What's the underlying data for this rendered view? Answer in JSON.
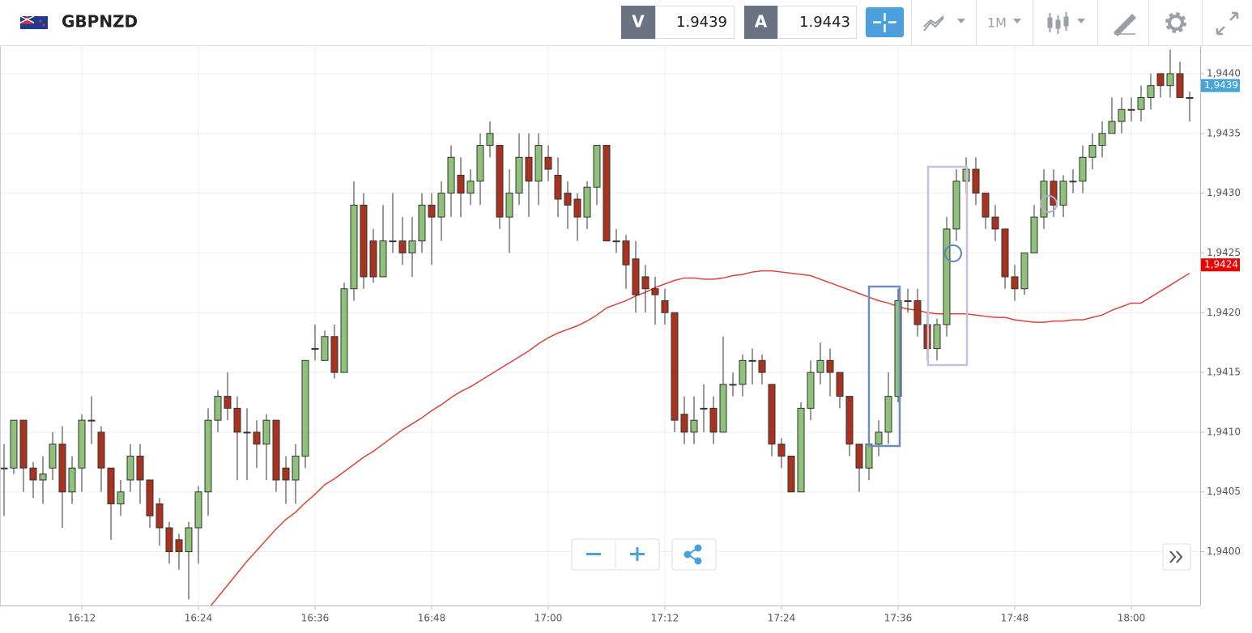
{
  "toolbar": {
    "symbol": "GBPNZD",
    "sell_label": "V",
    "sell_price": 1.9439,
    "buy_label": "A",
    "buy_price": 1.9443,
    "timeframe": "1M"
  },
  "chart_data": {
    "type": "candlestick",
    "x": [
      "16:04",
      "16:05",
      "16:06",
      "16:07",
      "16:08",
      "16:09",
      "16:10",
      "16:11",
      "16:12",
      "16:13",
      "16:14",
      "16:15",
      "16:16",
      "16:17",
      "16:18",
      "16:19",
      "16:20",
      "16:21",
      "16:22",
      "16:23",
      "16:24",
      "16:25",
      "16:26",
      "16:27",
      "16:28",
      "16:29",
      "16:30",
      "16:31",
      "16:32",
      "16:33",
      "16:34",
      "16:35",
      "16:36",
      "16:37",
      "16:38",
      "16:39",
      "16:40",
      "16:41",
      "16:42",
      "16:43",
      "16:44",
      "16:45",
      "16:46",
      "16:47",
      "16:48",
      "16:49",
      "16:50",
      "16:51",
      "16:52",
      "16:53",
      "16:54",
      "16:55",
      "16:56",
      "16:57",
      "16:58",
      "16:59",
      "17:00",
      "17:01",
      "17:02",
      "17:03",
      "17:04",
      "17:05",
      "17:06",
      "17:07",
      "17:08",
      "17:09",
      "17:10",
      "17:11",
      "17:12",
      "17:13",
      "17:14",
      "17:15",
      "17:16",
      "17:17",
      "17:18",
      "17:19",
      "17:20",
      "17:21",
      "17:22",
      "17:23",
      "17:24",
      "17:25",
      "17:26",
      "17:27",
      "17:28",
      "17:29",
      "17:30",
      "17:31",
      "17:32",
      "17:33",
      "17:34",
      "17:35",
      "17:36",
      "17:37",
      "17:38",
      "17:39",
      "17:40",
      "17:41",
      "17:42",
      "17:43",
      "17:44",
      "17:45",
      "17:46",
      "17:47",
      "17:48",
      "17:49",
      "17:50",
      "17:51",
      "17:52",
      "17:53",
      "17:54",
      "17:55",
      "17:56",
      "17:57",
      "17:58",
      "17:59",
      "18:00",
      "18:01",
      "18:02",
      "18:03",
      "18:04",
      "18:05",
      "18:06"
    ],
    "open": [
      1.9407,
      1.9407,
      1.9411,
      1.9407,
      1.9406,
      1.9407,
      1.9409,
      1.9405,
      1.9407,
      1.9411,
      1.941,
      1.9407,
      1.9404,
      1.9406,
      1.9408,
      1.9406,
      1.9404,
      1.9402,
      1.9401,
      1.94,
      1.9402,
      1.9405,
      1.9411,
      1.9413,
      1.9412,
      1.941,
      1.941,
      1.9409,
      1.9411,
      1.9407,
      1.9406,
      1.9408,
      1.9417,
      1.9416,
      1.9418,
      1.9415,
      1.9422,
      1.9429,
      1.9426,
      1.9423,
      1.9426,
      1.9426,
      1.9425,
      1.9426,
      1.9429,
      1.9428,
      1.943,
      1.94315,
      1.943,
      1.9431,
      1.9434,
      1.9434,
      1.9428,
      1.943,
      1.9433,
      1.9431,
      1.9433,
      1.94315,
      1.943,
      1.94295,
      1.9428,
      1.94305,
      1.9434,
      1.9426,
      1.9426,
      1.94245,
      1.9423,
      1.9422,
      1.9421,
      1.942,
      1.94115,
      1.941,
      1.9412,
      1.9412,
      1.941,
      1.9414,
      1.9414,
      1.9416,
      1.9416,
      1.9414,
      1.9409,
      1.9408,
      1.9405,
      1.9412,
      1.9415,
      1.9416,
      1.9415,
      1.9413,
      1.9409,
      1.9407,
      1.9409,
      1.941,
      1.9413,
      1.9421,
      1.9421,
      1.9419,
      1.9417,
      1.9419,
      1.9427,
      1.9431,
      1.9432,
      1.943,
      1.9428,
      1.9427,
      1.9423,
      1.9422,
      1.9425,
      1.9428,
      1.9431,
      1.9429,
      1.9431,
      1.9431,
      1.9433,
      1.9434,
      1.9435,
      1.9436,
      1.9437,
      1.9437,
      1.9438,
      1.944,
      1.9439,
      1.944,
      1.9438
    ],
    "high": [
      1.9409,
      1.9411,
      1.9411,
      1.94075,
      1.9408,
      1.941,
      1.94105,
      1.9408,
      1.94115,
      1.9413,
      1.94105,
      1.9407,
      1.9406,
      1.9409,
      1.9409,
      1.9406,
      1.94045,
      1.94025,
      1.94015,
      1.94025,
      1.94055,
      1.9412,
      1.94135,
      1.9415,
      1.9413,
      1.9412,
      1.9411,
      1.94115,
      1.9411,
      1.9408,
      1.9409,
      1.9416,
      1.9419,
      1.94185,
      1.9419,
      1.94225,
      1.9431,
      1.943,
      1.9427,
      1.9429,
      1.943,
      1.9428,
      1.9428,
      1.943,
      1.943,
      1.9431,
      1.9434,
      1.9433,
      1.9432,
      1.9435,
      1.9436,
      1.9434,
      1.9432,
      1.9435,
      1.9435,
      1.9435,
      1.9434,
      1.9433,
      1.9431,
      1.943,
      1.9431,
      1.9434,
      1.9434,
      1.9427,
      1.94265,
      1.9426,
      1.9424,
      1.9423,
      1.9422,
      1.942,
      1.9413,
      1.9413,
      1.9414,
      1.9413,
      1.9418,
      1.9415,
      1.94165,
      1.9417,
      1.94165,
      1.9414,
      1.94095,
      1.9408,
      1.94125,
      1.9416,
      1.94175,
      1.9417,
      1.9415,
      1.9413,
      1.9409,
      1.94095,
      1.9411,
      1.9415,
      1.9422,
      1.9422,
      1.9422,
      1.942,
      1.94195,
      1.9428,
      1.9432,
      1.9433,
      1.9433,
      1.943,
      1.9429,
      1.9427,
      1.9424,
      1.9425,
      1.9429,
      1.9432,
      1.9432,
      1.94315,
      1.9432,
      1.9434,
      1.9435,
      1.9436,
      1.9438,
      1.9438,
      1.9438,
      1.9439,
      1.944,
      1.944,
      1.9442,
      1.9441,
      1.94385
    ],
    "low": [
      1.9403,
      1.94065,
      1.9405,
      1.94045,
      1.9404,
      1.9406,
      1.9402,
      1.9404,
      1.9405,
      1.9409,
      1.9405,
      1.9401,
      1.9403,
      1.9405,
      1.9404,
      1.9402,
      1.94005,
      1.9399,
      1.93985,
      1.9396,
      1.9399,
      1.9403,
      1.941,
      1.9411,
      1.9406,
      1.9406,
      1.9407,
      1.9406,
      1.9405,
      1.9404,
      1.9404,
      1.9407,
      1.9416,
      1.9416,
      1.94145,
      1.9415,
      1.9421,
      1.9422,
      1.94225,
      1.9423,
      1.9425,
      1.9424,
      1.9423,
      1.9425,
      1.9424,
      1.9426,
      1.9428,
      1.9428,
      1.9429,
      1.9429,
      1.9433,
      1.9427,
      1.9425,
      1.9429,
      1.9428,
      1.9429,
      1.9431,
      1.9428,
      1.9427,
      1.9426,
      1.9427,
      1.9429,
      1.9426,
      1.9425,
      1.9422,
      1.942,
      1.942,
      1.9419,
      1.9419,
      1.941,
      1.9409,
      1.9409,
      1.941,
      1.9409,
      1.941,
      1.9413,
      1.9413,
      1.9414,
      1.9414,
      1.9408,
      1.9407,
      1.9405,
      1.9405,
      1.9411,
      1.9414,
      1.9413,
      1.9412,
      1.9408,
      1.9405,
      1.9406,
      1.9408,
      1.9409,
      1.94125,
      1.942,
      1.9418,
      1.9416,
      1.9416,
      1.9418,
      1.9426,
      1.943,
      1.9429,
      1.9427,
      1.9426,
      1.9422,
      1.9421,
      1.94215,
      1.9425,
      1.9427,
      1.9428,
      1.9428,
      1.943,
      1.943,
      1.9432,
      1.9433,
      1.9435,
      1.9435,
      1.9436,
      1.9436,
      1.9437,
      1.9438,
      1.9438,
      1.9438,
      1.9436
    ],
    "close": [
      1.9407,
      1.9411,
      1.9407,
      1.9406,
      1.94065,
      1.9409,
      1.9405,
      1.9407,
      1.9411,
      1.9411,
      1.9407,
      1.9404,
      1.9405,
      1.9408,
      1.9406,
      1.9403,
      1.9402,
      1.94,
      1.94,
      1.9402,
      1.9405,
      1.9411,
      1.9413,
      1.9412,
      1.941,
      1.941,
      1.9409,
      1.9411,
      1.9406,
      1.9406,
      1.9408,
      1.9416,
      1.9417,
      1.9418,
      1.9415,
      1.9422,
      1.9429,
      1.9423,
      1.9423,
      1.9426,
      1.9426,
      1.9425,
      1.9426,
      1.9429,
      1.9428,
      1.943,
      1.9433,
      1.943,
      1.9431,
      1.9434,
      1.9435,
      1.9428,
      1.943,
      1.9433,
      1.9431,
      1.9434,
      1.9432,
      1.94295,
      1.9429,
      1.9428,
      1.94305,
      1.9434,
      1.9426,
      1.9426,
      1.9424,
      1.94215,
      1.9422,
      1.94215,
      1.942,
      1.9411,
      1.941,
      1.9411,
      1.9412,
      1.941,
      1.9414,
      1.9414,
      1.9416,
      1.9416,
      1.9415,
      1.9409,
      1.9408,
      1.9405,
      1.9412,
      1.9415,
      1.9416,
      1.9415,
      1.9413,
      1.9409,
      1.9407,
      1.9409,
      1.941,
      1.9413,
      1.9421,
      1.9421,
      1.9419,
      1.9417,
      1.9419,
      1.9427,
      1.9431,
      1.9432,
      1.943,
      1.9428,
      1.9427,
      1.9423,
      1.9422,
      1.9425,
      1.9428,
      1.9431,
      1.9429,
      1.9431,
      1.9431,
      1.9433,
      1.9434,
      1.9435,
      1.9436,
      1.9437,
      1.9437,
      1.9438,
      1.9439,
      1.9439,
      1.944,
      1.9438,
      1.9438
    ],
    "up_color": "#8fc17b",
    "down_color": "#a8321d",
    "wick_color": "#333333",
    "moving_average": {
      "color": "#d9443a",
      "values": [
        null,
        null,
        null,
        null,
        null,
        null,
        null,
        null,
        null,
        null,
        null,
        null,
        null,
        null,
        null,
        null,
        null,
        null,
        null,
        null,
        null,
        1.93952,
        1.93962,
        1.93972,
        1.93982,
        1.93992,
        1.94001,
        1.9401,
        1.94019,
        1.94027,
        1.94033,
        1.94041,
        1.94048,
        1.94056,
        1.94061,
        1.94067,
        1.94073,
        1.94079,
        1.94084,
        1.9409,
        1.94096,
        1.94102,
        1.94107,
        1.94112,
        1.94118,
        1.94123,
        1.94129,
        1.94134,
        1.94138,
        1.94143,
        1.94148,
        1.94153,
        1.94158,
        1.94163,
        1.94168,
        1.94174,
        1.94179,
        1.94183,
        1.94186,
        1.94189,
        1.94193,
        1.94198,
        1.94204,
        1.94207,
        1.9421,
        1.94214,
        1.94217,
        1.94221,
        1.94224,
        1.94227,
        1.94229,
        1.94229,
        1.94228,
        1.94228,
        1.94229,
        1.94231,
        1.94232,
        1.94234,
        1.94235,
        1.94235,
        1.94234,
        1.94233,
        1.94232,
        1.94231,
        1.94228,
        1.94225,
        1.94222,
        1.94219,
        1.94216,
        1.94213,
        1.9421,
        1.94208,
        1.94205,
        1.94203,
        1.94202,
        1.942,
        1.94199,
        1.94199,
        1.94199,
        1.94199,
        1.94198,
        1.94197,
        1.94196,
        1.94196,
        1.94194,
        1.94193,
        1.94192,
        1.94192,
        1.94193,
        1.94193,
        1.94194,
        1.94194,
        1.94196,
        1.94198,
        1.94202,
        1.94205,
        1.94208,
        1.94208,
        1.94213,
        1.94218,
        1.94223,
        1.94228,
        1.94233
      ]
    },
    "ylim": [
      1.93955,
      1.94423
    ],
    "yticks": [
      {
        "value": 1.94,
        "label": "1,9400"
      },
      {
        "value": 1.9405,
        "label": "1,9405"
      },
      {
        "value": 1.941,
        "label": "1,9410"
      },
      {
        "value": 1.9415,
        "label": "1,9415"
      },
      {
        "value": 1.942,
        "label": "1,9420"
      },
      {
        "value": 1.9425,
        "label": "1,9425"
      },
      {
        "value": 1.943,
        "label": "1,9430"
      },
      {
        "value": 1.9435,
        "label": "1,9435"
      },
      {
        "value": 1.944,
        "label": "1,9440"
      }
    ],
    "xticks": [
      "16:12",
      "16:24",
      "16:36",
      "16:48",
      "17:00",
      "17:12",
      "17:24",
      "17:36",
      "17:48",
      "18:00"
    ],
    "grid": true,
    "price_markers": [
      {
        "value": 1.9439,
        "label": "1,9439",
        "color": "#45a5d8"
      },
      {
        "value": 1.9424,
        "label": "1,9424",
        "color": "#ee0000"
      }
    ]
  }
}
